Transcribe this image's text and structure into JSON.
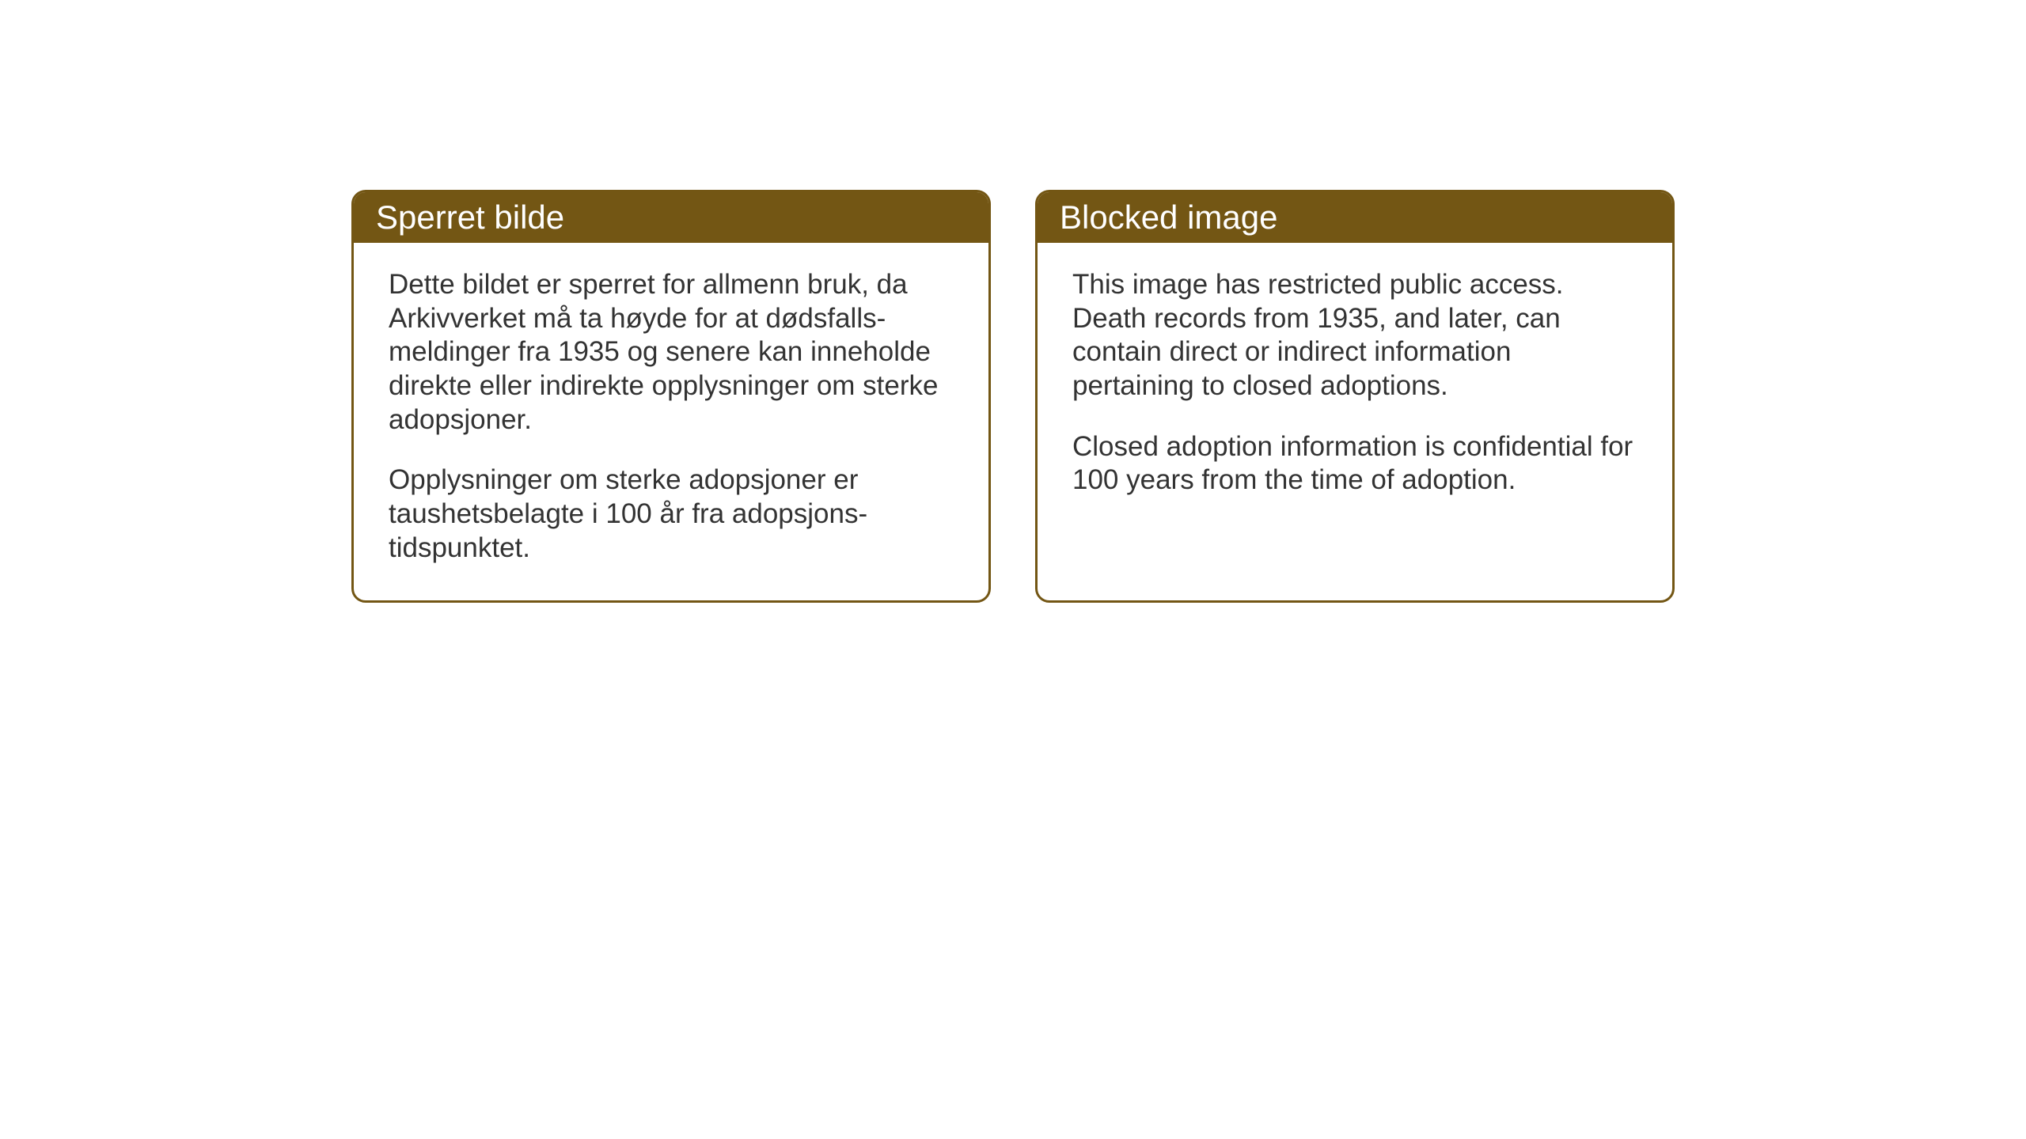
{
  "cards": {
    "norwegian": {
      "title": "Sperret bilde",
      "paragraph1": "Dette bildet er sperret for allmenn bruk, da Arkivverket må ta høyde for at dødsfalls-meldinger fra 1935 og senere kan inneholde direkte eller indirekte opplysninger om sterke adopsjoner.",
      "paragraph2": "Opplysninger om sterke adopsjoner er taushetsbelagte i 100 år fra adopsjons-tidspunktet."
    },
    "english": {
      "title": "Blocked image",
      "paragraph1": "This image has restricted public access. Death records from 1935, and later, can contain direct or indirect information pertaining to closed adoptions.",
      "paragraph2": "Closed adoption information is confidential for 100 years from the time of adoption."
    }
  },
  "styling": {
    "header_bg_color": "#735614",
    "header_text_color": "#ffffff",
    "border_color": "#735614",
    "body_text_color": "#333333",
    "background_color": "#ffffff",
    "header_fontsize": 42,
    "body_fontsize": 35,
    "border_radius": 18,
    "border_width": 3
  }
}
